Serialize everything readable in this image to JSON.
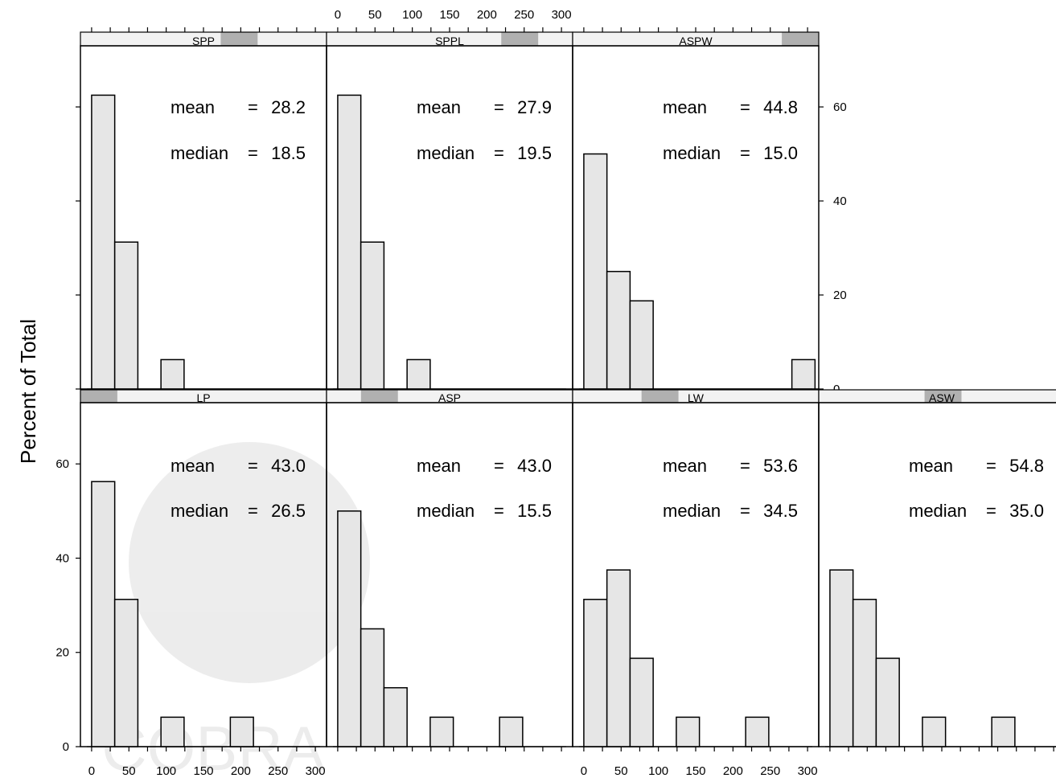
{
  "chart_data": {
    "type": "bar",
    "layout": "lattice histogram, 2 rows",
    "ylabel": "Percent of Total",
    "xlabel": "",
    "x_ticks": [
      0,
      50,
      100,
      150,
      200,
      250,
      300
    ],
    "y_ticks": [
      0,
      20,
      40,
      60
    ],
    "xlim": [
      -15,
      315
    ],
    "ylim": [
      0,
      73
    ],
    "bin_edges": [
      0,
      31,
      62,
      93,
      124,
      155,
      186,
      217,
      248,
      279,
      310
    ],
    "bar_fill": "#e6e6e6",
    "strip_fill": "#f2f2f2",
    "strip_marker_fill": "#b0b0b0",
    "watermark": "COBRA",
    "stat_labels": {
      "mean": "mean",
      "median": "median",
      "eq": "="
    },
    "panels": [
      {
        "name": "SPP",
        "row": 0,
        "col": 0,
        "strip_range": [
          0.57,
          0.72
        ],
        "mean": "28.2",
        "median": "18.5",
        "values": [
          62.5,
          31.25,
          0,
          6.25,
          0,
          0,
          0,
          0,
          0,
          0
        ]
      },
      {
        "name": "SPPL",
        "row": 0,
        "col": 1,
        "strip_range": [
          0.71,
          0.86
        ],
        "mean": "27.9",
        "median": "19.5",
        "values": [
          62.5,
          31.25,
          0,
          6.25,
          0,
          0,
          0,
          0,
          0,
          0
        ]
      },
      {
        "name": "ASPW",
        "row": 0,
        "col": 2,
        "strip_range": [
          0.85,
          1.0
        ],
        "mean": "44.8",
        "median": "15.0",
        "values": [
          50,
          25,
          18.75,
          0,
          0,
          0,
          0,
          0,
          0,
          6.25
        ]
      },
      {
        "name": "LP",
        "row": 1,
        "col": 0,
        "strip_range": [
          0.0,
          0.15
        ],
        "mean": "43.0",
        "median": "26.5",
        "values": [
          56.25,
          31.25,
          0,
          6.25,
          0,
          0,
          6.25,
          0,
          0,
          0
        ]
      },
      {
        "name": "ASP",
        "row": 1,
        "col": 1,
        "strip_range": [
          0.14,
          0.29
        ],
        "mean": "43.0",
        "median": "15.5",
        "values": [
          50,
          25,
          12.5,
          0,
          6.25,
          0,
          0,
          6.25,
          0,
          0
        ]
      },
      {
        "name": "LW",
        "row": 1,
        "col": 2,
        "strip_range": [
          0.28,
          0.43
        ],
        "mean": "53.6",
        "median": "34.5",
        "values": [
          31.25,
          37.5,
          18.75,
          0,
          6.25,
          0,
          0,
          6.25,
          0,
          0
        ]
      },
      {
        "name": "ASW",
        "row": 1,
        "col": 3,
        "strip_range": [
          0.43,
          0.58
        ],
        "mean": "54.8",
        "median": "35.0",
        "values": [
          37.5,
          31.25,
          18.75,
          0,
          6.25,
          0,
          0,
          6.25,
          0,
          0
        ]
      }
    ]
  }
}
